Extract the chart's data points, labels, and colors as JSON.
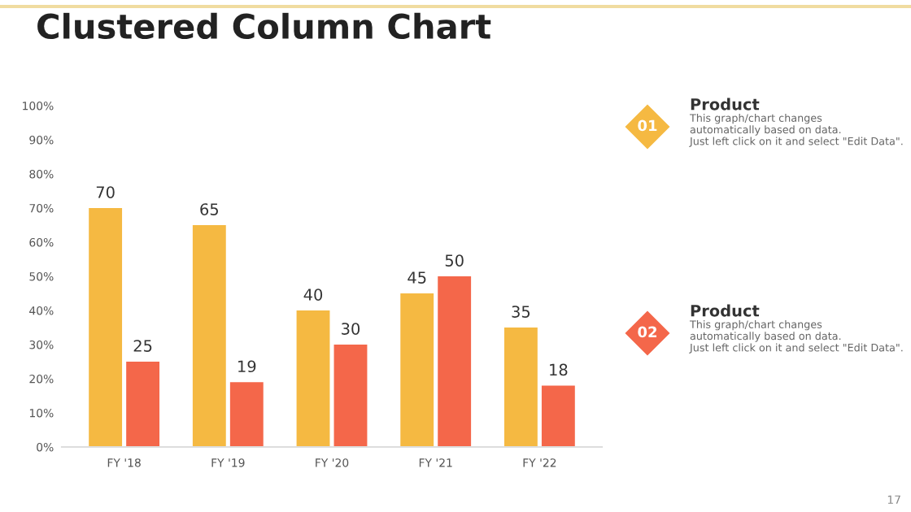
{
  "chart_data": {
    "type": "bar",
    "title": "Clustered Column Chart",
    "categories": [
      "FY '18",
      "FY '19",
      "FY '20",
      "FY '21",
      "FY '22"
    ],
    "series": [
      {
        "name": "Product",
        "color": "#f5b942",
        "values": [
          70,
          65,
          40,
          45,
          35
        ]
      },
      {
        "name": "Product",
        "color": "#f4674a",
        "values": [
          25,
          19,
          30,
          50,
          18
        ]
      }
    ],
    "ylim": [
      0,
      100
    ],
    "yticks": [
      {
        "value": 0,
        "label": "0%"
      },
      {
        "value": 10,
        "label": "10%"
      },
      {
        "value": 20,
        "label": "20%"
      },
      {
        "value": 30,
        "label": "30%"
      },
      {
        "value": 40,
        "label": "40%"
      },
      {
        "value": 50,
        "label": "50%"
      },
      {
        "value": 60,
        "label": "60%"
      },
      {
        "value": 70,
        "label": "70%"
      },
      {
        "value": 80,
        "label": "80%"
      },
      {
        "value": 90,
        "label": "90%"
      },
      {
        "value": 100,
        "label": "100%"
      }
    ],
    "grid": false,
    "data_labels": true,
    "legend": "right",
    "annotations": [
      "01",
      "This graph/chart changes\nautomatically based on data.\nJust left click on it and select \"Edit Data\".",
      "02",
      "This graph/chart changes\nautomatically based on data.\nJust left click on it and select \"Edit Data\".",
      "17"
    ]
  }
}
